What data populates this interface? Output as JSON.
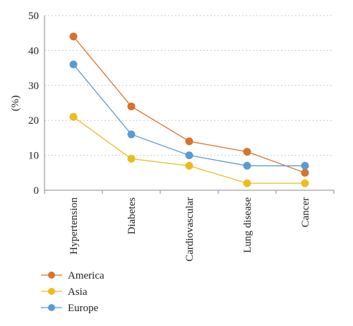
{
  "chart_data": {
    "type": "line",
    "title": "",
    "xlabel": "",
    "ylabel": "(%)",
    "categories": [
      "Hypertension",
      "Diabetes",
      "Cardiovascular",
      "Lung disease",
      "Cancer"
    ],
    "ylim": [
      0,
      50
    ],
    "yticks": [
      0,
      10,
      20,
      30,
      40,
      50
    ],
    "grid": true,
    "legend_position": "bottom-left",
    "series": [
      {
        "name": "America",
        "color": "#d9722a",
        "values": [
          44,
          24,
          14,
          11,
          5
        ]
      },
      {
        "name": "Asia",
        "color": "#ecbc1d",
        "values": [
          21,
          9,
          7,
          2,
          2
        ]
      },
      {
        "name": "Europe",
        "color": "#5b9bd5",
        "values": [
          36,
          16,
          10,
          7,
          7
        ]
      }
    ]
  }
}
